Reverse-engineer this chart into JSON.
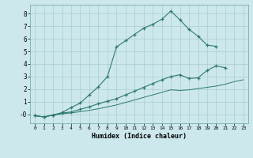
{
  "xlabel": "Humidex (Indice chaleur)",
  "background_color": "#cce8ec",
  "grid_color": "#aaccd4",
  "line_color": "#2d7a6e",
  "xlim": [
    -0.5,
    23.5
  ],
  "ylim": [
    -0.7,
    8.7
  ],
  "xticks": [
    0,
    1,
    2,
    3,
    4,
    5,
    6,
    7,
    8,
    9,
    10,
    11,
    12,
    13,
    14,
    15,
    16,
    17,
    18,
    19,
    20,
    21,
    22,
    23
  ],
  "yticks": [
    0,
    1,
    2,
    3,
    4,
    5,
    6,
    7,
    8
  ],
  "ytick_labels": [
    "-0",
    "1",
    "2",
    "3",
    "4",
    "5",
    "6",
    "7",
    "8"
  ],
  "line1_x": [
    0,
    1,
    2,
    3,
    4,
    5,
    6,
    7,
    8,
    9,
    10,
    11,
    12,
    13,
    14,
    15,
    16,
    17,
    18,
    19,
    20
  ],
  "line1_y": [
    -0.1,
    -0.2,
    -0.05,
    0.15,
    0.55,
    0.9,
    1.55,
    2.2,
    3.0,
    5.35,
    5.85,
    6.35,
    6.85,
    7.15,
    7.55,
    8.2,
    7.5,
    6.75,
    6.2,
    5.5,
    5.4
  ],
  "line2_x": [
    0,
    1,
    2,
    3,
    4,
    5,
    6,
    7,
    8,
    9,
    10,
    11,
    12,
    13,
    14,
    15,
    16,
    17,
    18,
    19,
    20,
    21
  ],
  "line2_y": [
    -0.1,
    -0.2,
    -0.05,
    0.1,
    0.2,
    0.4,
    0.6,
    0.85,
    1.05,
    1.25,
    1.55,
    1.85,
    2.15,
    2.45,
    2.75,
    3.0,
    3.15,
    2.85,
    2.9,
    3.5,
    3.85,
    3.7
  ],
  "line3_x": [
    0,
    1,
    2,
    3,
    4,
    5,
    6,
    7,
    8,
    9,
    10,
    11,
    12,
    13,
    14,
    15,
    16,
    17,
    18,
    19,
    20,
    21,
    22,
    23
  ],
  "line3_y": [
    -0.1,
    -0.2,
    -0.05,
    0.05,
    0.12,
    0.22,
    0.32,
    0.45,
    0.6,
    0.75,
    0.95,
    1.15,
    1.35,
    1.55,
    1.75,
    1.95,
    1.9,
    1.95,
    2.05,
    2.15,
    2.25,
    2.4,
    2.6,
    2.75
  ]
}
